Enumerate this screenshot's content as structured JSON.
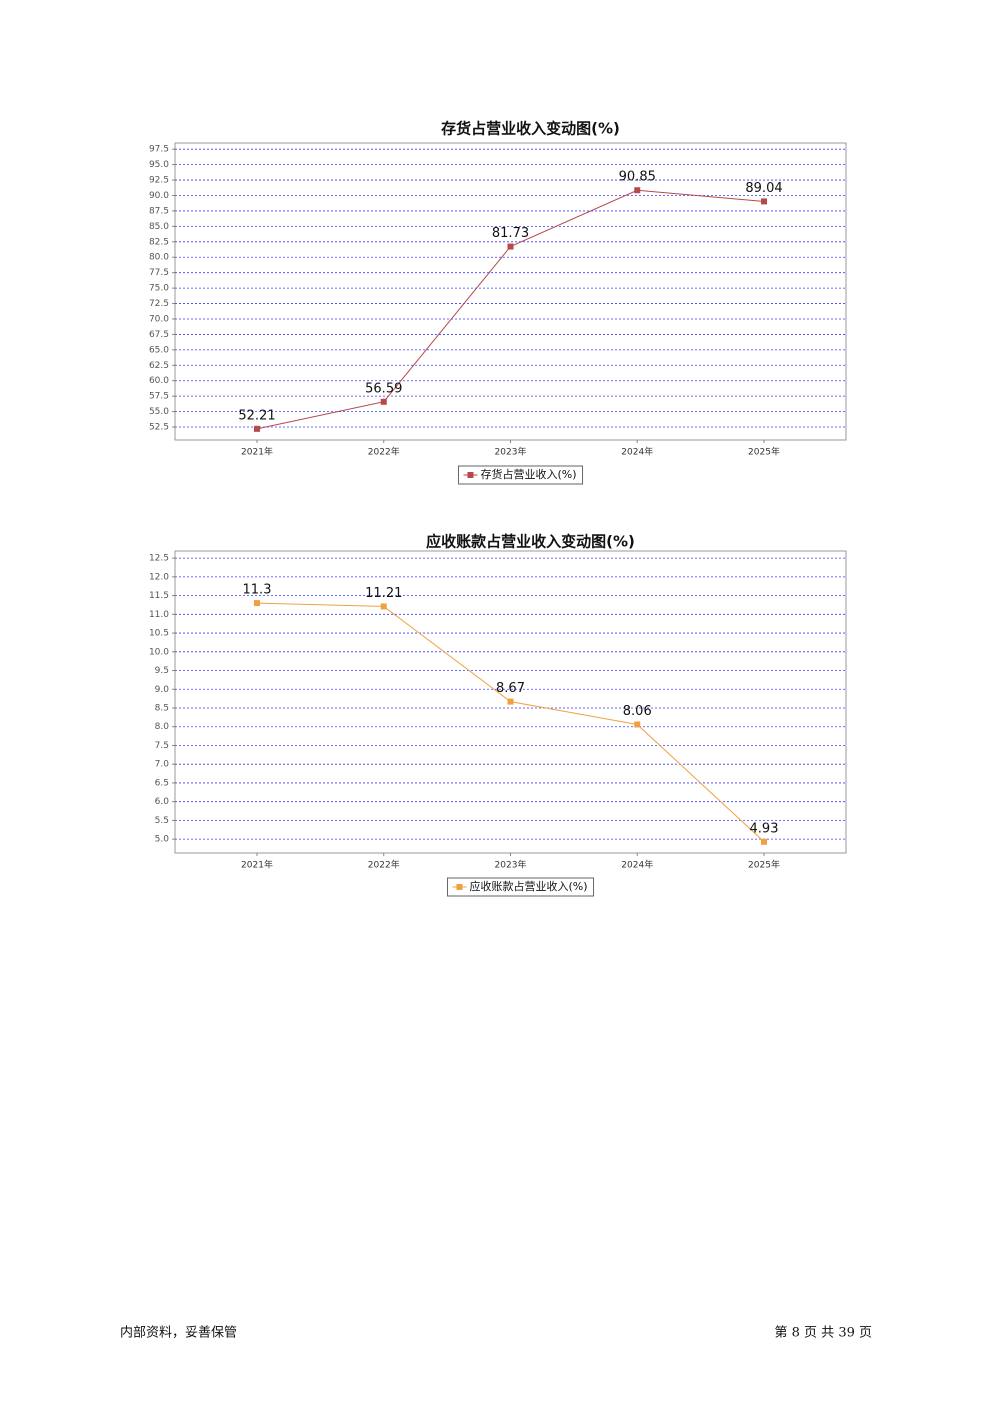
{
  "chart_data": [
    {
      "type": "line",
      "title": "存货占营业收入变动图(%)",
      "categories": [
        "2021年",
        "2022年",
        "2023年",
        "2024年",
        "2025年"
      ],
      "series": [
        {
          "name": "存货占营业收入(%)",
          "color": "#b5494b",
          "values": [
            52.21,
            56.59,
            81.73,
            90.85,
            89.04
          ]
        }
      ],
      "ylim": [
        50.4,
        98.5
      ],
      "yticks": [
        52.5,
        {
          "value": 55,
          "label": "55.0"
        },
        57.5,
        {
          "value": 60,
          "label": "60.0"
        },
        62.5,
        {
          "value": 65,
          "label": "65.0"
        },
        67.5,
        {
          "value": 70,
          "label": "70.0"
        },
        72.5,
        {
          "value": 75,
          "label": "75.0"
        },
        77.5,
        {
          "value": 80,
          "label": "80.0"
        },
        82.5,
        {
          "value": 85,
          "label": "85.0"
        },
        87.5,
        {
          "value": 90,
          "label": "90.0"
        },
        92.5,
        {
          "value": 95,
          "label": "95.0"
        },
        97.5
      ],
      "grid": true
    },
    {
      "type": "line",
      "title": "应收账款占营业收入变动图(%)",
      "categories": [
        "2021年",
        "2022年",
        "2023年",
        "2024年",
        "2025年"
      ],
      "series": [
        {
          "name": "应收账款占营业收入(%)",
          "color": "#f0a040",
          "values": [
            11.3,
            11.21,
            8.67,
            8.06,
            4.93
          ]
        }
      ],
      "ylim": [
        4.63,
        12.69
      ],
      "yticks": [
        {
          "value": 5,
          "label": "5.0"
        },
        5.5,
        {
          "value": 6,
          "label": "6.0"
        },
        6.5,
        {
          "value": 7,
          "label": "7.0"
        },
        7.5,
        {
          "value": 8,
          "label": "8.0"
        },
        8.5,
        {
          "value": 9,
          "label": "9.0"
        },
        9.5,
        {
          "value": 10,
          "label": "10.0"
        },
        10.5,
        {
          "value": 11,
          "label": "11.0"
        },
        11.5,
        {
          "value": 12,
          "label": "12.0"
        },
        12.5
      ],
      "grid": true
    }
  ],
  "footer": {
    "left": "内部资料，妥善保管",
    "page_text": "第 8 页  共 39 页"
  }
}
